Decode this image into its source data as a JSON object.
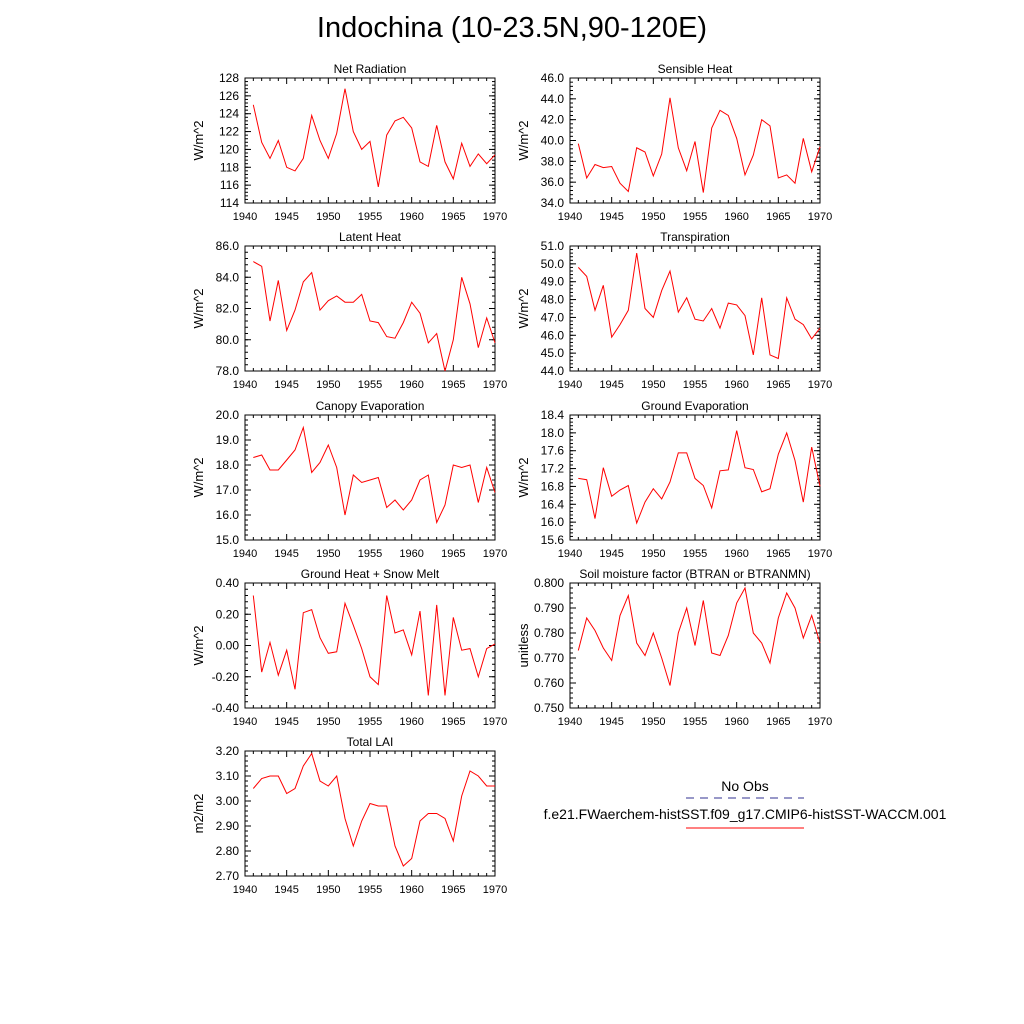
{
  "title": "Indochina (10-23.5N,90-120E)",
  "legend": {
    "obs_label": "No Obs",
    "obs_color": "#5a5aa6",
    "model_label": "f.e21.FWaerchem-histSST.f09_g17.CMIP6-histSST-WACCM.001",
    "model_color": "#ff0000"
  },
  "chart_data": [
    {
      "type": "line",
      "title": "Net Radiation",
      "ylabel": "W/m^2",
      "xlim": [
        1940,
        1970
      ],
      "xticks": [
        "1940",
        "1945",
        "1950",
        "1955",
        "1960",
        "1965",
        "1970"
      ],
      "ylim": [
        114,
        128
      ],
      "yticks": [
        "114",
        "116",
        "118",
        "120",
        "122",
        "124",
        "126",
        "128"
      ],
      "x": [
        1941,
        1942,
        1943,
        1944,
        1945,
        1946,
        1947,
        1948,
        1949,
        1950,
        1951,
        1952,
        1953,
        1954,
        1955,
        1956,
        1957,
        1958,
        1959,
        1960,
        1961,
        1962,
        1963,
        1964,
        1965,
        1966,
        1967,
        1968,
        1969,
        1970
      ],
      "series": [
        {
          "values": [
            125.0,
            120.8,
            119.0,
            121.0,
            118.0,
            117.6,
            119.0,
            123.8,
            121.0,
            119.0,
            121.8,
            126.8,
            122.0,
            120.0,
            120.9,
            115.8,
            121.6,
            123.2,
            123.6,
            122.4,
            118.6,
            118.1,
            122.7,
            118.6,
            116.7,
            120.7,
            118.1,
            119.5,
            118.4,
            119.4
          ]
        }
      ]
    },
    {
      "type": "line",
      "title": "Sensible Heat",
      "ylabel": "W/m^2",
      "xlim": [
        1940,
        1970
      ],
      "xticks": [
        "1940",
        "1945",
        "1950",
        "1955",
        "1960",
        "1965",
        "1970"
      ],
      "ylim": [
        34.0,
        46.0
      ],
      "yticks": [
        "34.0",
        "36.0",
        "38.0",
        "40.0",
        "42.0",
        "44.0",
        "46.0"
      ],
      "x": [
        1941,
        1942,
        1943,
        1944,
        1945,
        1946,
        1947,
        1948,
        1949,
        1950,
        1951,
        1952,
        1953,
        1954,
        1955,
        1956,
        1957,
        1958,
        1959,
        1960,
        1961,
        1962,
        1963,
        1964,
        1965,
        1966,
        1967,
        1968,
        1969,
        1970
      ],
      "series": [
        {
          "values": [
            39.7,
            36.4,
            37.7,
            37.4,
            37.5,
            35.9,
            35.1,
            39.3,
            38.9,
            36.6,
            38.7,
            44.1,
            39.3,
            37.1,
            39.9,
            35.0,
            41.2,
            42.9,
            42.4,
            40.2,
            36.7,
            38.6,
            42.0,
            41.4,
            36.4,
            36.7,
            35.9,
            40.2,
            37.0,
            39.4
          ]
        }
      ]
    },
    {
      "type": "line",
      "title": "Latent Heat",
      "ylabel": "W/m^2",
      "xlim": [
        1940,
        1970
      ],
      "xticks": [
        "1940",
        "1945",
        "1950",
        "1955",
        "1960",
        "1965",
        "1970"
      ],
      "ylim": [
        78.0,
        86.0
      ],
      "yticks": [
        "78.0",
        "80.0",
        "82.0",
        "84.0",
        "86.0"
      ],
      "x": [
        1941,
        1942,
        1943,
        1944,
        1945,
        1946,
        1947,
        1948,
        1949,
        1950,
        1951,
        1952,
        1953,
        1954,
        1955,
        1956,
        1957,
        1958,
        1959,
        1960,
        1961,
        1962,
        1963,
        1964,
        1965,
        1966,
        1967,
        1968,
        1969,
        1970
      ],
      "series": [
        {
          "values": [
            85.0,
            84.7,
            81.2,
            83.8,
            80.6,
            81.9,
            83.7,
            84.3,
            81.9,
            82.5,
            82.8,
            82.4,
            82.4,
            82.9,
            81.2,
            81.1,
            80.2,
            80.1,
            81.1,
            82.4,
            81.7,
            79.8,
            80.4,
            78.0,
            80.0,
            84.0,
            82.3,
            79.5,
            81.4,
            79.8
          ]
        }
      ]
    },
    {
      "type": "line",
      "title": "Transpiration",
      "ylabel": "W/m^2",
      "xlim": [
        1940,
        1970
      ],
      "xticks": [
        "1940",
        "1945",
        "1950",
        "1955",
        "1960",
        "1965",
        "1970"
      ],
      "ylim": [
        44.0,
        51.0
      ],
      "yticks": [
        "44.0",
        "45.0",
        "46.0",
        "47.0",
        "48.0",
        "49.0",
        "50.0",
        "51.0"
      ],
      "x": [
        1941,
        1942,
        1943,
        1944,
        1945,
        1946,
        1947,
        1948,
        1949,
        1950,
        1951,
        1952,
        1953,
        1954,
        1955,
        1956,
        1957,
        1958,
        1959,
        1960,
        1961,
        1962,
        1963,
        1964,
        1965,
        1966,
        1967,
        1968,
        1969,
        1970
      ],
      "series": [
        {
          "values": [
            49.8,
            49.3,
            47.4,
            48.8,
            45.9,
            46.6,
            47.4,
            50.6,
            47.5,
            47.0,
            48.5,
            49.6,
            47.3,
            48.1,
            46.9,
            46.8,
            47.5,
            46.4,
            47.8,
            47.7,
            47.1,
            44.9,
            48.1,
            44.9,
            44.7,
            48.1,
            46.9,
            46.6,
            45.8,
            46.4
          ]
        }
      ]
    },
    {
      "type": "line",
      "title": "Canopy Evaporation",
      "ylabel": "W/m^2",
      "xlim": [
        1940,
        1970
      ],
      "xticks": [
        "1940",
        "1945",
        "1950",
        "1955",
        "1960",
        "1965",
        "1970"
      ],
      "ylim": [
        15.0,
        20.0
      ],
      "yticks": [
        "15.0",
        "16.0",
        "17.0",
        "18.0",
        "19.0",
        "20.0"
      ],
      "x": [
        1941,
        1942,
        1943,
        1944,
        1945,
        1946,
        1947,
        1948,
        1949,
        1950,
        1951,
        1952,
        1953,
        1954,
        1955,
        1956,
        1957,
        1958,
        1959,
        1960,
        1961,
        1962,
        1963,
        1964,
        1965,
        1966,
        1967,
        1968,
        1969,
        1970
      ],
      "series": [
        {
          "values": [
            18.3,
            18.4,
            17.8,
            17.8,
            18.2,
            18.6,
            19.5,
            17.7,
            18.1,
            18.8,
            17.9,
            16.0,
            17.6,
            17.3,
            17.4,
            17.5,
            16.3,
            16.6,
            16.2,
            16.6,
            17.4,
            17.6,
            15.7,
            16.4,
            18.0,
            17.9,
            18.0,
            16.5,
            17.9,
            16.9
          ]
        }
      ]
    },
    {
      "type": "line",
      "title": "Ground Evaporation",
      "ylabel": "W/m^2",
      "xlim": [
        1940,
        1970
      ],
      "xticks": [
        "1940",
        "1945",
        "1950",
        "1955",
        "1960",
        "1965",
        "1970"
      ],
      "ylim": [
        15.6,
        18.4
      ],
      "yticks": [
        "15.6",
        "16.0",
        "16.4",
        "16.8",
        "17.2",
        "17.6",
        "18.0",
        "18.4"
      ],
      "x": [
        1941,
        1942,
        1943,
        1944,
        1945,
        1946,
        1947,
        1948,
        1949,
        1950,
        1951,
        1952,
        1953,
        1954,
        1955,
        1956,
        1957,
        1958,
        1959,
        1960,
        1961,
        1962,
        1963,
        1964,
        1965,
        1966,
        1967,
        1968,
        1969,
        1970
      ],
      "series": [
        {
          "values": [
            16.98,
            16.95,
            16.08,
            17.22,
            16.58,
            16.72,
            16.82,
            15.98,
            16.45,
            16.75,
            16.52,
            16.9,
            17.55,
            17.55,
            16.98,
            16.82,
            16.32,
            17.15,
            17.17,
            18.05,
            17.22,
            17.18,
            16.68,
            16.75,
            17.52,
            18.0,
            17.38,
            16.45,
            17.68,
            16.8
          ]
        }
      ]
    },
    {
      "type": "line",
      "title": "Ground Heat + Snow Melt",
      "ylabel": "W/m^2",
      "xlim": [
        1940,
        1970
      ],
      "xticks": [
        "1940",
        "1945",
        "1950",
        "1955",
        "1960",
        "1965",
        "1970"
      ],
      "ylim": [
        -0.4,
        0.4
      ],
      "yticks": [
        "-0.40",
        "-0.20",
        "0.00",
        "0.20",
        "0.40"
      ],
      "x": [
        1941,
        1942,
        1943,
        1944,
        1945,
        1946,
        1947,
        1948,
        1949,
        1950,
        1951,
        1952,
        1953,
        1954,
        1955,
        1956,
        1957,
        1958,
        1959,
        1960,
        1961,
        1962,
        1963,
        1964,
        1965,
        1966,
        1967,
        1968,
        1969,
        1970
      ],
      "series": [
        {
          "values": [
            0.32,
            -0.17,
            0.02,
            -0.19,
            -0.03,
            -0.28,
            0.21,
            0.23,
            0.05,
            -0.05,
            -0.04,
            0.27,
            0.13,
            -0.02,
            -0.2,
            -0.25,
            0.32,
            0.08,
            0.1,
            -0.06,
            0.22,
            -0.32,
            0.26,
            -0.32,
            0.18,
            -0.03,
            -0.02,
            -0.2,
            -0.02,
            0.01
          ]
        }
      ]
    },
    {
      "type": "line",
      "title": "Soil moisture factor (BTRAN or BTRANMN)",
      "ylabel": "unitless",
      "xlim": [
        1940,
        1970
      ],
      "xticks": [
        "1940",
        "1945",
        "1950",
        "1955",
        "1960",
        "1965",
        "1970"
      ],
      "ylim": [
        0.75,
        0.8
      ],
      "yticks": [
        "0.750",
        "0.760",
        "0.770",
        "0.780",
        "0.790",
        "0.800"
      ],
      "x": [
        1941,
        1942,
        1943,
        1944,
        1945,
        1946,
        1947,
        1948,
        1949,
        1950,
        1951,
        1952,
        1953,
        1954,
        1955,
        1956,
        1957,
        1958,
        1959,
        1960,
        1961,
        1962,
        1963,
        1964,
        1965,
        1966,
        1967,
        1968,
        1969,
        1970
      ],
      "series": [
        {
          "values": [
            0.773,
            0.786,
            0.781,
            0.774,
            0.769,
            0.787,
            0.795,
            0.776,
            0.771,
            0.78,
            0.77,
            0.759,
            0.78,
            0.79,
            0.775,
            0.793,
            0.772,
            0.771,
            0.779,
            0.792,
            0.798,
            0.78,
            0.776,
            0.768,
            0.786,
            0.796,
            0.79,
            0.778,
            0.787,
            0.776
          ]
        }
      ]
    },
    {
      "type": "line",
      "title": "Total LAI",
      "ylabel": "m2/m2",
      "xlim": [
        1940,
        1970
      ],
      "xticks": [
        "1940",
        "1945",
        "1950",
        "1955",
        "1960",
        "1965",
        "1970"
      ],
      "ylim": [
        2.7,
        3.2
      ],
      "yticks": [
        "2.70",
        "2.80",
        "2.90",
        "3.00",
        "3.10",
        "3.20"
      ],
      "x": [
        1941,
        1942,
        1943,
        1944,
        1945,
        1946,
        1947,
        1948,
        1949,
        1950,
        1951,
        1952,
        1953,
        1954,
        1955,
        1956,
        1957,
        1958,
        1959,
        1960,
        1961,
        1962,
        1963,
        1964,
        1965,
        1966,
        1967,
        1968,
        1969,
        1970
      ],
      "series": [
        {
          "values": [
            3.05,
            3.09,
            3.1,
            3.1,
            3.03,
            3.05,
            3.14,
            3.19,
            3.08,
            3.06,
            3.1,
            2.93,
            2.82,
            2.92,
            2.99,
            2.98,
            2.98,
            2.82,
            2.74,
            2.77,
            2.92,
            2.95,
            2.95,
            2.93,
            2.84,
            3.02,
            3.12,
            3.1,
            3.06,
            3.06
          ]
        }
      ]
    }
  ]
}
